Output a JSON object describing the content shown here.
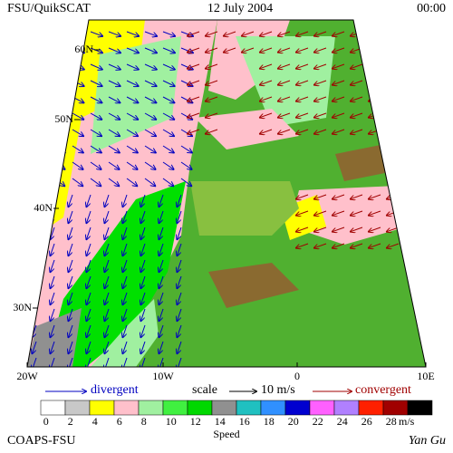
{
  "header": {
    "title": "FSU/QuikSCAT",
    "date": "12 July 2004",
    "time": "00:00"
  },
  "map": {
    "lat_labels": [
      "60N",
      "50N",
      "40N",
      "30N"
    ],
    "lon_labels": [
      "20W",
      "10W",
      "0",
      "10E"
    ]
  },
  "legend": {
    "divergent": "divergent",
    "scale": "scale",
    "scale_value": "10 m/s",
    "convergent": "convergent",
    "colorbar": {
      "labels": [
        0,
        2,
        4,
        6,
        8,
        10,
        12,
        14,
        16,
        18,
        20,
        22,
        24,
        26,
        28
      ],
      "colors": [
        "#ffffff",
        "#c8c8c8",
        "#ffff00",
        "#ffc0cb",
        "#a0f0a0",
        "#40f040",
        "#00d800",
        "#909090",
        "#20c0c0",
        "#3090ff",
        "#0000d0",
        "#ff60ff",
        "#b080ff",
        "#ff2000",
        "#a00000",
        "#000000"
      ],
      "unit": "m/s",
      "title": "Speed"
    }
  },
  "footer": {
    "left": "COAPS-FSU",
    "right": "Yan Gu"
  }
}
